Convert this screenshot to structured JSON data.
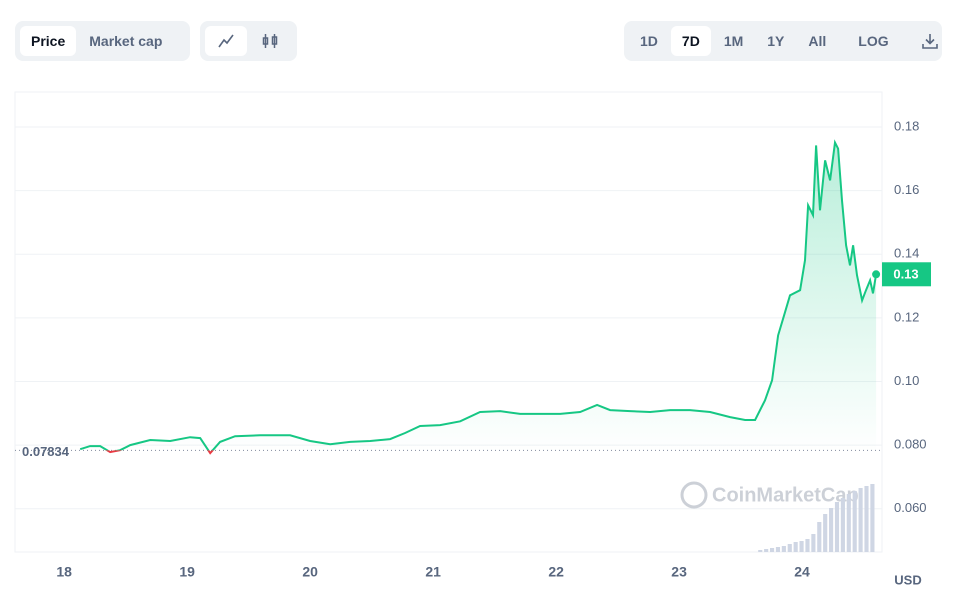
{
  "toolbar": {
    "metric_tabs": [
      "Price",
      "Market cap"
    ],
    "ranges": [
      "1D",
      "7D",
      "1M",
      "1Y",
      "All"
    ],
    "log": "LOG"
  },
  "chart_data": {
    "type": "line",
    "color": "#16c784",
    "below_color": "#ea3943",
    "currency": "USD",
    "watermark": "CoinMarketCap",
    "x": [
      18.13,
      18.211,
      18.293,
      18.374,
      18.455,
      18.537,
      18.699,
      18.862,
      19.024,
      19.106,
      19.187,
      19.268,
      19.39,
      19.593,
      19.837,
      20.0,
      20.163,
      20.325,
      20.488,
      20.65,
      20.772,
      20.894,
      21.057,
      21.22,
      21.382,
      21.545,
      21.707,
      21.87,
      22.033,
      22.195,
      22.333,
      22.439,
      22.602,
      22.764,
      22.927,
      23.089,
      23.252,
      23.415,
      23.537,
      23.618,
      23.699,
      23.756,
      23.805,
      23.854,
      23.902,
      23.984,
      24.024,
      24.049,
      24.089,
      24.114,
      24.146,
      24.187,
      24.228,
      24.268,
      24.293,
      24.325,
      24.358,
      24.39,
      24.415,
      24.447,
      24.488,
      24.52,
      24.553,
      24.577,
      24.602
    ],
    "values": [
      0.0787,
      0.0797,
      0.0797,
      0.0778,
      0.0784,
      0.08,
      0.0816,
      0.0813,
      0.0825,
      0.0822,
      0.0775,
      0.081,
      0.0828,
      0.0831,
      0.0831,
      0.0813,
      0.0803,
      0.081,
      0.0813,
      0.0819,
      0.0838,
      0.086,
      0.0863,
      0.0875,
      0.0904,
      0.0907,
      0.0898,
      0.0898,
      0.0898,
      0.0904,
      0.0926,
      0.091,
      0.0907,
      0.0904,
      0.091,
      0.091,
      0.0904,
      0.0888,
      0.0879,
      0.0879,
      0.0941,
      0.1004,
      0.1145,
      0.1208,
      0.1271,
      0.1287,
      0.1381,
      0.1554,
      0.1523,
      0.1742,
      0.1538,
      0.1695,
      0.1632,
      0.1751,
      0.1732,
      0.1569,
      0.1428,
      0.1365,
      0.1428,
      0.1334,
      0.1255,
      0.1287,
      0.1318,
      0.1277,
      0.1337
    ],
    "reference": {
      "value": 0.07834,
      "label": "0.07834"
    },
    "current_price": {
      "value": 0.1337,
      "label": "0.13"
    },
    "volume": {
      "color": "#cfd6e4",
      "x": [
        23.66,
        23.708,
        23.756,
        23.804,
        23.852,
        23.9,
        23.948,
        23.996,
        24.044,
        24.092,
        24.14,
        24.188,
        24.236,
        24.284,
        24.332,
        24.38,
        24.428,
        24.476,
        24.524,
        24.572
      ],
      "values": [
        2,
        3,
        4,
        5,
        6,
        8,
        10,
        11,
        13,
        18,
        30,
        38,
        44,
        50,
        54,
        58,
        61,
        64,
        66,
        68
      ]
    },
    "xlim": [
      17.6,
      24.65
    ],
    "xticks": [
      18,
      19,
      20,
      21,
      22,
      23,
      24
    ],
    "ylim": [
      0.0464,
      0.191
    ],
    "yticks": [
      {
        "value": 0.06,
        "label": "0.060"
      },
      {
        "value": 0.08,
        "label": "0.080"
      },
      {
        "value": 0.1,
        "label": "0.10"
      },
      0.12,
      0.14,
      0.16,
      0.18
    ],
    "grid": true
  }
}
